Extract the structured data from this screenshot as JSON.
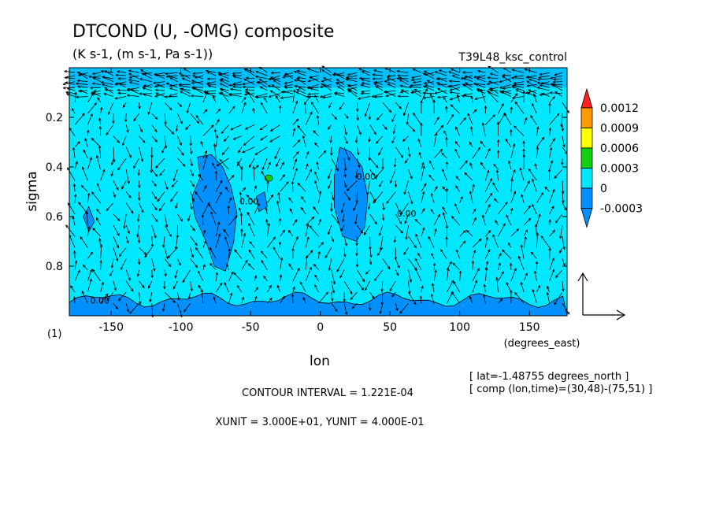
{
  "header": {
    "title": "DTCOND (U, -OMG) composite",
    "subtitle": "(K s-1, (m s-1, Pa s-1))",
    "run_name": "T39L48_ksc_control"
  },
  "footer": {
    "contour_interval": "CONTOUR INTERVAL = 1.221E-04",
    "vector_units": "XUNIT = 3.000E+01, YUNIT = 4.000E-01",
    "lat_note": "[ lat=-1.48755 degrees_north ]",
    "comp_note": "[ comp (lon,time)=(30,48)-(75,51) ]",
    "panel_index": "(1)"
  },
  "chart_data": {
    "type": "heatmap",
    "title": "DTCOND (U, -OMG) composite",
    "xlabel": "lon",
    "xunit": "(degrees_east)",
    "ylabel": "sigma",
    "xlim": [
      -180,
      177
    ],
    "ylim": [
      1.0,
      0.0
    ],
    "y_inverted": true,
    "xticks": [
      -150,
      -100,
      -50,
      0,
      50,
      100,
      150
    ],
    "yticks": [
      0.2,
      0.4,
      0.6,
      0.8
    ],
    "contour_labels": [
      {
        "text": "0.00",
        "lon": -165,
        "sigma": 0.95
      },
      {
        "text": "0.00",
        "lon": -58,
        "sigma": 0.55
      },
      {
        "text": "0.00",
        "lon": 26,
        "sigma": 0.45
      },
      {
        "text": "0.00",
        "lon": 55,
        "sigma": 0.6
      }
    ],
    "colorbar": {
      "levels": [
        "0.0012",
        "0.0009",
        "0.0006",
        "0.0003",
        "0",
        "-0.0003"
      ],
      "colors": [
        "#ff2020",
        "#ff9a00",
        "#ffff00",
        "#10d010",
        "#00e8ff",
        "#0090ff"
      ]
    },
    "regions": [
      {
        "value_range": [
          -0.0003,
          0
        ],
        "lon": [
          -90,
          -55
        ],
        "sigma": [
          0.35,
          0.82
        ]
      },
      {
        "value_range": [
          -0.0003,
          0
        ],
        "lon": [
          8,
          35
        ],
        "sigma": [
          0.32,
          0.7
        ]
      },
      {
        "value_range": [
          -0.0003,
          0
        ],
        "lon": [
          -180,
          177
        ],
        "sigma": [
          0.92,
          1.0
        ]
      },
      {
        "value_range": [
          0.0003,
          0.0006
        ],
        "lon": [
          -38,
          -36
        ],
        "sigma": [
          0.44,
          0.46
        ]
      }
    ]
  }
}
